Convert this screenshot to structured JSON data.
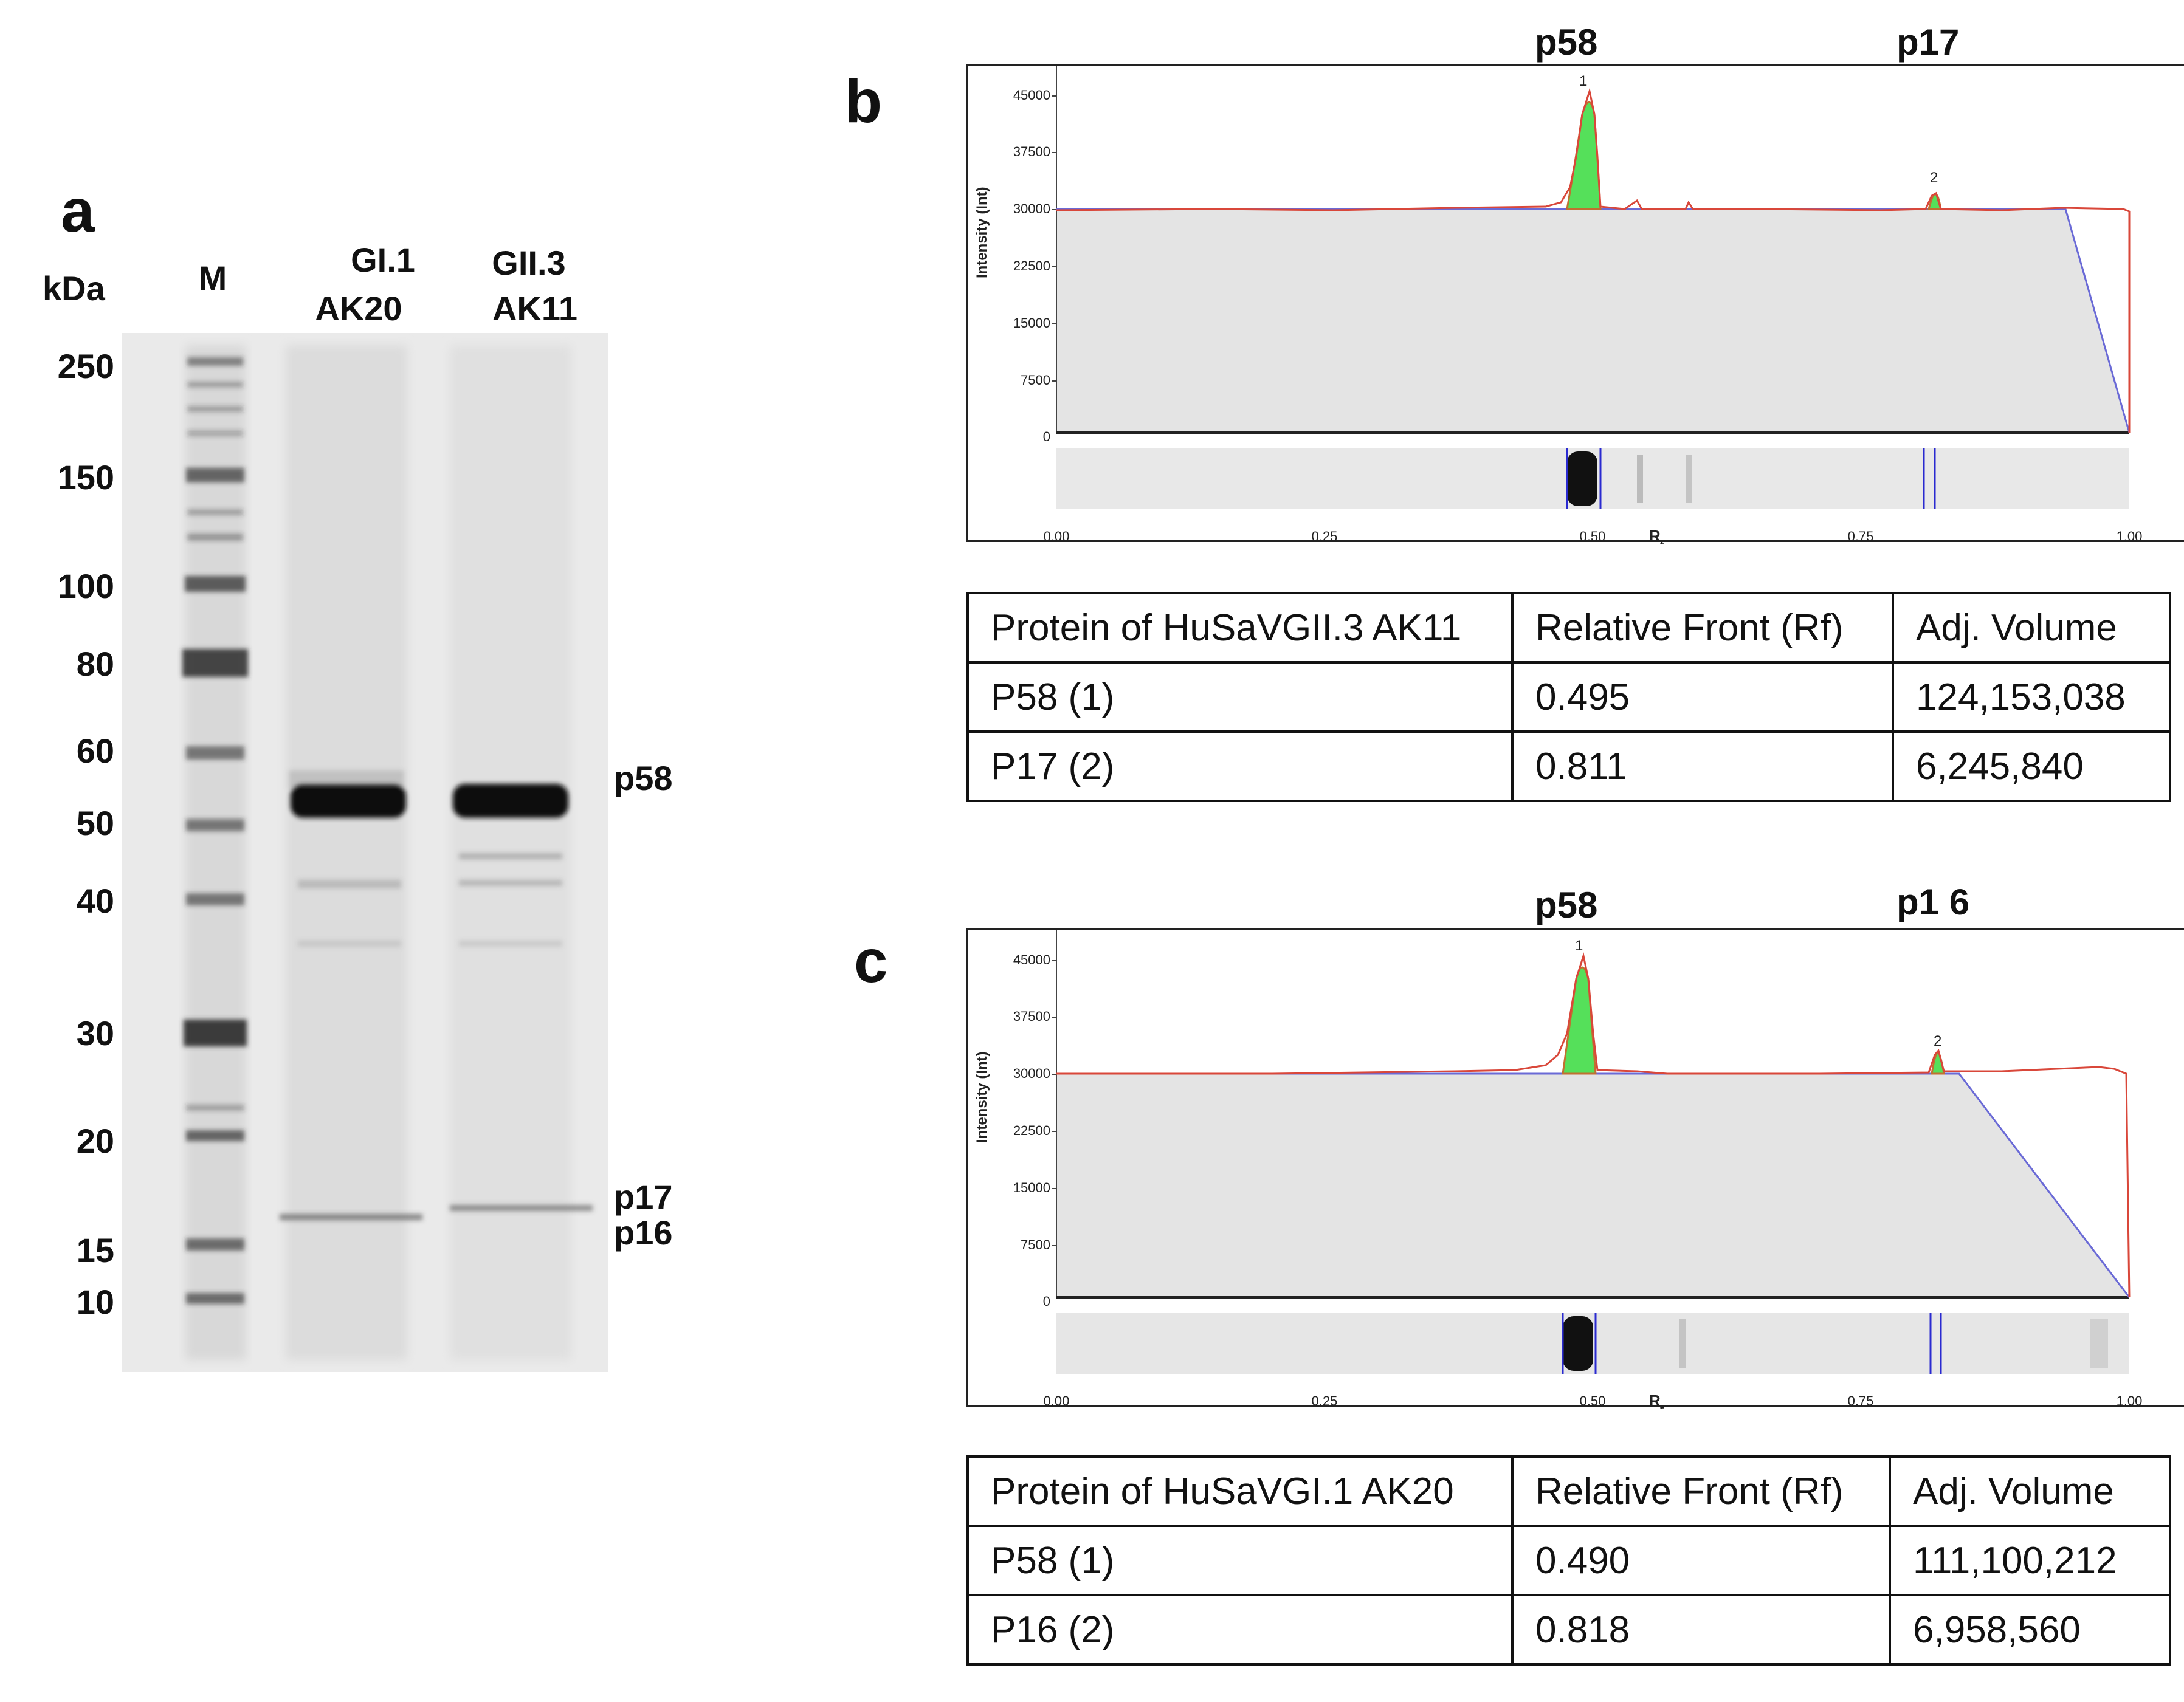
{
  "panel_a": {
    "label": "a",
    "unit": "kDa",
    "lane_marker": "M",
    "lane1": [
      "GI.1",
      "AK20"
    ],
    "lane2": [
      "GII.3",
      "AK11"
    ],
    "mw_markers": [
      "250",
      "150",
      "100",
      "80",
      "60",
      "50",
      "40",
      "30",
      "20",
      "15",
      "10"
    ],
    "band_labels": [
      "p58",
      "p17",
      "p16"
    ]
  },
  "panel_b": {
    "label": "b",
    "peak_labels": [
      "p58",
      "p17"
    ],
    "peak_numbers": [
      "1",
      "2"
    ],
    "y_axis_label": "Intensity (Int)",
    "y_ticks": [
      "45000",
      "37500",
      "30000",
      "22500",
      "15000",
      "7500",
      "0"
    ],
    "x_ticks": [
      "0.00",
      "0.25",
      "0.50",
      "0.75",
      "1.00"
    ],
    "x_axis_label": "R",
    "x_axis_sub": "f",
    "peaks_rf": [
      0.495,
      0.811
    ],
    "table": {
      "headers": [
        "Protein of HuSaVGII.3 AK11",
        "Relative Front (Rf)",
        "Adj. Volume"
      ],
      "rows": [
        [
          "P58 (1)",
          "0.495",
          "124,153,038"
        ],
        [
          "P17 (2)",
          "0.811",
          "6,245,840"
        ]
      ]
    }
  },
  "panel_c": {
    "label": "c",
    "peak_labels": [
      "p58",
      "p1 6"
    ],
    "peak_numbers": [
      "1",
      "2"
    ],
    "y_axis_label": "Intensity (Int)",
    "y_ticks": [
      "45000",
      "37500",
      "30000",
      "22500",
      "15000",
      "7500",
      "0"
    ],
    "x_ticks": [
      "0.00",
      "0.25",
      "0.50",
      "0.75",
      "1.00"
    ],
    "x_axis_label": "R",
    "x_axis_sub": "f",
    "peaks_rf": [
      0.49,
      0.818
    ],
    "table": {
      "headers": [
        "Protein of HuSaVGI.1 AK20",
        "Relative Front (Rf)",
        "Adj. Volume"
      ],
      "rows": [
        [
          "P58 (1)",
          "0.490",
          "111,100,212"
        ],
        [
          "P16 (2)",
          "0.818",
          "6,958,560"
        ]
      ]
    }
  },
  "colors": {
    "profile_line": "#d9473a",
    "baseline_line": "#6a6ad6",
    "peak_fill": "#55e05a",
    "background_fill": "#e4e4e4",
    "lane_marker_line": "#2a2ad0"
  }
}
